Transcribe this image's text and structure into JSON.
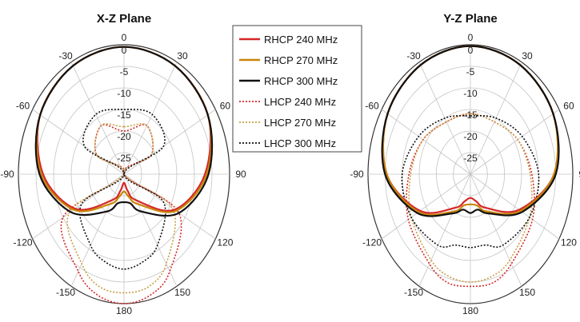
{
  "chart_data": {
    "type": "line",
    "subtype": "polar",
    "r_ticks": [
      0,
      -5,
      -10,
      -15,
      -20,
      -25
    ],
    "r_range": [
      -30,
      0
    ],
    "angle_ticks": [
      "0",
      "30",
      "60",
      "90",
      "120",
      "150",
      "180",
      "-150",
      "-120",
      "-90",
      "-60",
      "-30"
    ],
    "angle_tick_values": [
      0,
      30,
      60,
      90,
      120,
      150,
      180,
      -150,
      -120,
      -90,
      -60,
      -30
    ],
    "grid": true,
    "legend": {
      "placement": "top-center",
      "entries": [
        "RHCP 240 MHz",
        "RHCP 270 MHz",
        "RHCP 300 MHz",
        "LHCP 240 MHz",
        "LHCP 270 MHz",
        "LHCP 300 MHz"
      ]
    },
    "series_styles": [
      {
        "color": "#d62728",
        "dash": "solid"
      },
      {
        "color": "#c8860a",
        "dash": "solid"
      },
      {
        "color": "#111111",
        "dash": "solid"
      },
      {
        "color": "#d62728",
        "dash": "dotted"
      },
      {
        "color": "#c8a046",
        "dash": "dotted"
      },
      {
        "color": "#111111",
        "dash": "dotted"
      }
    ],
    "plots": [
      {
        "title": "X-Z Plane",
        "theta": [
          0,
          30,
          60,
          90,
          120,
          150,
          165,
          180,
          -165,
          -150,
          -120,
          -90,
          -60,
          -30
        ],
        "series": [
          {
            "name": "RHCP 240 MHz",
            "values": [
              -0.5,
              -1,
              -2.5,
              -7,
              -13.5,
              -23,
              -26,
              -28,
              -26,
              -23,
              -14,
              -7,
              -2.5,
              -1
            ]
          },
          {
            "name": "RHCP 270 MHz",
            "values": [
              -0.5,
              -1,
              -2.5,
              -6.5,
              -13,
              -22,
              -24.5,
              -26,
              -24.5,
              -22,
              -13.5,
              -6.5,
              -2.5,
              -1
            ]
          },
          {
            "name": "RHCP 300 MHz",
            "values": [
              -0.5,
              -1,
              -2.5,
              -6,
              -12,
              -20,
              -23,
              -23.5,
              -23,
              -20,
              -12.5,
              -6,
              -2.5,
              -1
            ]
          },
          {
            "name": "LHCP 240 MHz",
            "values": [
              -20,
              -17,
              -21,
              -30,
              -12,
              -4,
              -1,
              0,
              -1,
              -4,
              -10,
              -30,
              -21,
              -17
            ]
          },
          {
            "name": "LHCP 270 MHz",
            "values": [
              -19,
              -17,
              -21,
              -30,
              -14,
              -6,
              -3,
              -2.5,
              -3,
              -6,
              -12,
              -30,
              -21,
              -17
            ]
          },
          {
            "name": "LHCP 300 MHz",
            "values": [
              -15,
              -14,
              -17,
              -30,
              -17,
              -11,
              -9,
              -8,
              -9,
              -11,
              -16,
              -30,
              -17,
              -14
            ]
          }
        ]
      },
      {
        "title": "Y-Z Plane",
        "theta": [
          0,
          30,
          60,
          90,
          120,
          150,
          165,
          180,
          -165,
          -150,
          -120,
          -90,
          -60,
          -30
        ],
        "series": [
          {
            "name": "RHCP 240 MHz",
            "values": [
              -0.3,
              -0.8,
              -2,
              -5.5,
              -13.5,
              -21,
              -23.5,
              -24.5,
              -23.5,
              -21,
              -13,
              -5.5,
              -2,
              -0.8
            ]
          },
          {
            "name": "RHCP 270 MHz",
            "values": [
              -0.3,
              -0.8,
              -2,
              -5.5,
              -13,
              -20,
              -22.5,
              -23,
              -22.5,
              -20,
              -12.5,
              -5.5,
              -2,
              -0.8
            ]
          },
          {
            "name": "RHCP 300 MHz",
            "values": [
              -0.3,
              -0.8,
              -2,
              -5,
              -12.5,
              -19.5,
              -21.5,
              -21,
              -21.5,
              -19.5,
              -12,
              -5,
              -2,
              -0.8
            ]
          },
          {
            "name": "LHCP 240 MHz",
            "values": [
              -16,
              -16,
              -14,
              -12,
              -9,
              -6,
              -4,
              -4,
              -4,
              -6,
              -9,
              -12,
              -14,
              -16
            ]
          },
          {
            "name": "LHCP 270 MHz",
            "values": [
              -16,
              -16,
              -14,
              -12.5,
              -10,
              -7,
              -5.5,
              -5,
              -5.5,
              -7,
              -10,
              -12.5,
              -14,
              -16
            ]
          },
          {
            "name": "LHCP 300 MHz",
            "values": [
              -16.5,
              -15,
              -12.5,
              -10,
              -10,
              -11,
              -13,
              -13,
              -13,
              -11,
              -10,
              -10,
              -12.5,
              -15
            ]
          }
        ]
      }
    ]
  }
}
